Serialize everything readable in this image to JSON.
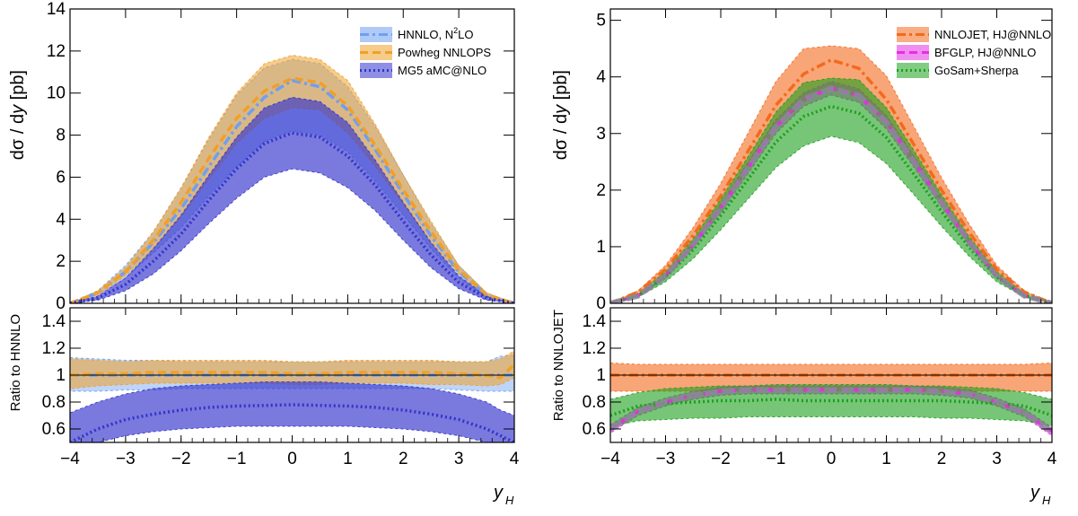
{
  "colors": {
    "hnnlo": "#6f9ff0",
    "powheg": "#f0a028",
    "mg5": "#3333cc",
    "nnlojet": "#f36a1d",
    "bfglp": "#e62ee6",
    "gosam": "#1ca01c",
    "overlay": "#8a8a9a"
  },
  "chart_data": [
    {
      "type": "line",
      "panel": "left-main",
      "ylabel": "dσ / dy [pb]",
      "ylabel_parts": {
        "a": "dσ / d",
        "b": "y",
        "c": " [pb]"
      },
      "xlabel": "y_H",
      "xlim": [
        -4,
        4
      ],
      "ylim": [
        0,
        14
      ],
      "x_ticks": [
        "−4",
        "−3",
        "−2",
        "−1",
        "0",
        "1",
        "2",
        "3",
        "4"
      ],
      "y_ticks": [
        "0",
        "2",
        "4",
        "6",
        "8",
        "10",
        "12",
        "14"
      ],
      "x": [
        -4,
        -3.5,
        -3,
        -2.5,
        -2,
        -1.5,
        -1,
        -0.5,
        0,
        0.5,
        1,
        1.5,
        2,
        2.5,
        3,
        3.5,
        4
      ],
      "legend_position": "top-right",
      "series": [
        {
          "name": "HNNLO, N²LO",
          "name_parts": {
            "a": "HNNLO, N",
            "sup": "2",
            "b": "LO"
          },
          "color_key": "hnnlo",
          "style": "dashdot",
          "central": [
            0.0,
            0.5,
            1.5,
            2.9,
            4.5,
            6.5,
            8.4,
            9.8,
            10.6,
            10.3,
            9.2,
            7.3,
            5.2,
            3.2,
            1.5,
            0.4,
            0.0
          ],
          "low": [
            0.0,
            0.4,
            1.2,
            2.4,
            3.6,
            5.1,
            6.5,
            7.7,
            8.2,
            8.0,
            7.2,
            5.8,
            4.2,
            2.6,
            1.2,
            0.3,
            0.0
          ],
          "high": [
            0.0,
            0.6,
            1.8,
            3.4,
            5.5,
            7.8,
            9.9,
            11.2,
            11.6,
            11.4,
            10.3,
            8.4,
            6.1,
            3.8,
            1.8,
            0.5,
            0.0
          ]
        },
        {
          "name": "Powheg NNLOPS",
          "color_key": "powheg",
          "style": "dashed",
          "central": [
            0.0,
            0.5,
            1.5,
            3.0,
            4.8,
            6.9,
            8.8,
            10.1,
            10.7,
            10.5,
            9.4,
            7.5,
            5.4,
            3.4,
            1.6,
            0.4,
            0.0
          ],
          "low": [
            0.0,
            0.4,
            1.3,
            2.6,
            4.1,
            5.9,
            7.6,
            8.8,
            9.3,
            9.2,
            8.1,
            6.5,
            4.7,
            2.9,
            1.4,
            0.3,
            0.0
          ],
          "high": [
            0.0,
            0.6,
            1.7,
            3.4,
            5.5,
            7.9,
            10.0,
            11.4,
            11.8,
            11.6,
            10.6,
            8.5,
            6.1,
            3.9,
            1.8,
            0.5,
            0.0
          ]
        },
        {
          "name": "MG5 aMC@NLO",
          "color_key": "mg5",
          "style": "dotted",
          "central": [
            0.0,
            0.25,
            0.9,
            2.0,
            3.3,
            4.9,
            6.4,
            7.6,
            8.1,
            7.9,
            7.0,
            5.6,
            3.9,
            2.3,
            1.0,
            0.25,
            0.0
          ],
          "low": [
            0.0,
            0.15,
            0.6,
            1.4,
            2.5,
            3.8,
            5.0,
            6.0,
            6.4,
            6.2,
            5.5,
            4.4,
            3.0,
            1.7,
            0.7,
            0.15,
            0.0
          ],
          "high": [
            0.0,
            0.35,
            1.2,
            2.6,
            4.2,
            6.1,
            7.9,
            9.3,
            9.8,
            9.6,
            8.6,
            6.8,
            4.8,
            2.9,
            1.3,
            0.35,
            0.0
          ]
        }
      ]
    },
    {
      "type": "line",
      "panel": "left-ratio",
      "ylabel": "Ratio to HNNLO",
      "xlabel": "y_H",
      "xlim": [
        -4,
        4
      ],
      "ylim": [
        0.5,
        1.5
      ],
      "y_ticks": [
        "0.6",
        "0.8",
        "1",
        "1.2",
        "1.4"
      ],
      "x_ticks": [
        "−4",
        "−3",
        "−2",
        "−1",
        "0",
        "1",
        "2",
        "3",
        "4"
      ],
      "x": [
        -4,
        -3.5,
        -3,
        -2.5,
        -2,
        -1.5,
        -1,
        -0.5,
        0,
        0.5,
        1,
        1.5,
        2,
        2.5,
        3,
        3.5,
        3.75,
        4
      ],
      "series": [
        {
          "series": "HNNLO, N²LO",
          "color_key": "hnnlo",
          "style": "dashdot",
          "central": [
            1,
            1,
            1,
            1,
            1,
            1,
            1,
            1,
            1,
            1,
            1,
            1,
            1,
            1,
            1,
            1,
            1,
            1
          ],
          "low": [
            0.88,
            0.88,
            0.89,
            0.89,
            0.9,
            0.9,
            0.9,
            0.9,
            0.9,
            0.9,
            0.9,
            0.9,
            0.9,
            0.9,
            0.89,
            0.88,
            0.88,
            0.88
          ],
          "high": [
            1.13,
            1.12,
            1.11,
            1.11,
            1.1,
            1.1,
            1.1,
            1.1,
            1.1,
            1.1,
            1.1,
            1.1,
            1.1,
            1.1,
            1.1,
            1.1,
            1.14,
            1.15
          ]
        },
        {
          "series": "Powheg NNLOPS",
          "color_key": "powheg",
          "style": "dashed",
          "central": [
            1.0,
            1.01,
            1.01,
            1.02,
            1.02,
            1.02,
            1.02,
            1.02,
            1.01,
            1.01,
            1.02,
            1.02,
            1.02,
            1.02,
            1.01,
            1.0,
            0.98,
            1.08
          ],
          "low": [
            0.9,
            0.92,
            0.93,
            0.94,
            0.94,
            0.94,
            0.94,
            0.94,
            0.93,
            0.93,
            0.94,
            0.94,
            0.94,
            0.93,
            0.93,
            0.92,
            0.93,
            0.98
          ],
          "high": [
            1.12,
            1.11,
            1.1,
            1.11,
            1.11,
            1.11,
            1.11,
            1.11,
            1.1,
            1.1,
            1.11,
            1.11,
            1.11,
            1.11,
            1.1,
            1.1,
            1.12,
            1.18
          ]
        },
        {
          "series": "MG5 aMC@NLO",
          "color_key": "mg5",
          "style": "dotted",
          "central": [
            0.5,
            0.6,
            0.67,
            0.71,
            0.74,
            0.76,
            0.77,
            0.775,
            0.78,
            0.775,
            0.77,
            0.76,
            0.74,
            0.71,
            0.67,
            0.6,
            0.55,
            0.5
          ],
          "low": [
            0.45,
            0.5,
            0.55,
            0.58,
            0.6,
            0.61,
            0.62,
            0.62,
            0.62,
            0.62,
            0.62,
            0.61,
            0.6,
            0.58,
            0.55,
            0.5,
            0.47,
            0.45
          ],
          "high": [
            0.72,
            0.8,
            0.86,
            0.9,
            0.92,
            0.93,
            0.94,
            0.95,
            0.95,
            0.95,
            0.94,
            0.93,
            0.92,
            0.9,
            0.86,
            0.8,
            0.74,
            0.7
          ]
        }
      ]
    },
    {
      "type": "line",
      "panel": "right-main",
      "ylabel": "dσ / dy [pb]",
      "ylabel_parts": {
        "a": "dσ / d",
        "b": "y",
        "c": " [pb]"
      },
      "xlabel": "y_H",
      "xlim": [
        -4,
        4
      ],
      "ylim": [
        0,
        5.2
      ],
      "y_ticks": [
        "0",
        "1",
        "2",
        "3",
        "4",
        "5"
      ],
      "x_ticks": [
        "−4",
        "−3",
        "−2",
        "−1",
        "0",
        "1",
        "2",
        "3",
        "4"
      ],
      "x": [
        -4,
        -3.5,
        -3,
        -2.5,
        -2,
        -1.5,
        -1,
        -0.5,
        0,
        0.5,
        1,
        1.5,
        2,
        2.5,
        3,
        3.5,
        4
      ],
      "legend_position": "top-right",
      "series": [
        {
          "name": "NNLOJET, HJ@NNLO",
          "color_key": "nnlojet",
          "style": "dashdot",
          "central": [
            0.0,
            0.2,
            0.6,
            1.2,
            1.9,
            2.7,
            3.5,
            4.05,
            4.3,
            4.15,
            3.6,
            2.8,
            2.0,
            1.25,
            0.6,
            0.2,
            0.0
          ],
          "low": [
            0.0,
            0.18,
            0.53,
            1.05,
            1.67,
            2.38,
            3.08,
            3.56,
            3.78,
            3.65,
            3.17,
            2.46,
            1.76,
            1.1,
            0.53,
            0.18,
            0.0
          ],
          "high": [
            0.0,
            0.22,
            0.67,
            1.34,
            2.12,
            3.02,
            3.92,
            4.5,
            4.55,
            4.5,
            4.02,
            3.12,
            2.22,
            1.4,
            0.67,
            0.22,
            0.0
          ]
        },
        {
          "name": "BFGLP, HJ@NNLO",
          "color_key": "bfglp",
          "style": "dashed",
          "central": [
            0.0,
            0.13,
            0.48,
            1.03,
            1.68,
            2.4,
            3.12,
            3.6,
            3.8,
            3.67,
            3.2,
            2.5,
            1.78,
            1.08,
            0.48,
            0.13,
            0.0
          ],
          "low": [
            0.0,
            0.12,
            0.45,
            0.98,
            1.6,
            2.3,
            3.0,
            3.48,
            3.68,
            3.55,
            3.08,
            2.4,
            1.7,
            1.03,
            0.45,
            0.12,
            0.0
          ],
          "high": [
            0.0,
            0.14,
            0.51,
            1.08,
            1.76,
            2.5,
            3.24,
            3.72,
            3.92,
            3.79,
            3.32,
            2.6,
            1.86,
            1.13,
            0.51,
            0.14,
            0.0
          ]
        },
        {
          "name": "GoSam+Sherpa",
          "color_key": "gosam",
          "style": "dotted",
          "central": [
            0.0,
            0.14,
            0.46,
            0.95,
            1.55,
            2.2,
            2.85,
            3.3,
            3.48,
            3.36,
            2.93,
            2.28,
            1.62,
            0.99,
            0.46,
            0.14,
            0.0
          ],
          "low": [
            0.0,
            0.11,
            0.38,
            0.79,
            1.3,
            1.85,
            2.4,
            2.78,
            2.95,
            2.84,
            2.47,
            1.92,
            1.36,
            0.83,
            0.38,
            0.11,
            0.0
          ],
          "high": [
            0.0,
            0.17,
            0.56,
            1.14,
            1.84,
            2.6,
            3.38,
            3.9,
            3.98,
            3.95,
            3.46,
            2.7,
            1.92,
            1.18,
            0.56,
            0.17,
            0.0
          ]
        }
      ]
    },
    {
      "type": "line",
      "panel": "right-ratio",
      "ylabel": "Ratio to NNLOJET",
      "xlabel": "y_H",
      "xlim": [
        -4,
        4
      ],
      "ylim": [
        0.5,
        1.5
      ],
      "y_ticks": [
        "0.6",
        "0.8",
        "1",
        "1.2",
        "1.4"
      ],
      "x_ticks": [
        "−4",
        "−3",
        "−2",
        "−1",
        "0",
        "1",
        "2",
        "3",
        "4"
      ],
      "x": [
        -4,
        -3.5,
        -3,
        -2.5,
        -2,
        -1.5,
        -1,
        -0.5,
        0,
        0.5,
        1,
        1.5,
        2,
        2.5,
        3,
        3.5,
        4
      ],
      "series": [
        {
          "series": "NNLOJET, HJ@NNLO",
          "color_key": "nnlojet",
          "style": "dashdot",
          "central": [
            1,
            1,
            1,
            1,
            1,
            1,
            1,
            1,
            1,
            1,
            1,
            1,
            1,
            1,
            1,
            1,
            1
          ],
          "low": [
            0.88,
            0.88,
            0.88,
            0.88,
            0.88,
            0.88,
            0.88,
            0.88,
            0.88,
            0.88,
            0.88,
            0.88,
            0.88,
            0.88,
            0.88,
            0.88,
            0.88
          ],
          "high": [
            1.09,
            1.08,
            1.08,
            1.08,
            1.08,
            1.08,
            1.08,
            1.08,
            1.08,
            1.08,
            1.08,
            1.08,
            1.08,
            1.08,
            1.08,
            1.08,
            1.09
          ]
        },
        {
          "series": "BFGLP, HJ@NNLO",
          "color_key": "bfglp",
          "style": "dashed",
          "central": [
            0.6,
            0.73,
            0.8,
            0.85,
            0.88,
            0.89,
            0.89,
            0.89,
            0.89,
            0.89,
            0.89,
            0.89,
            0.88,
            0.86,
            0.8,
            0.72,
            0.58
          ],
          "low": [
            0.57,
            0.7,
            0.77,
            0.82,
            0.85,
            0.86,
            0.86,
            0.86,
            0.86,
            0.86,
            0.86,
            0.86,
            0.85,
            0.83,
            0.77,
            0.69,
            0.55
          ],
          "high": [
            0.63,
            0.76,
            0.83,
            0.88,
            0.91,
            0.92,
            0.92,
            0.92,
            0.92,
            0.92,
            0.92,
            0.92,
            0.91,
            0.89,
            0.83,
            0.75,
            0.61
          ]
        },
        {
          "series": "GoSam+Sherpa",
          "color_key": "gosam",
          "style": "dotted",
          "central": [
            0.7,
            0.77,
            0.79,
            0.8,
            0.81,
            0.81,
            0.82,
            0.81,
            0.81,
            0.81,
            0.81,
            0.81,
            0.81,
            0.8,
            0.79,
            0.77,
            0.7
          ],
          "low": [
            0.62,
            0.66,
            0.67,
            0.68,
            0.68,
            0.69,
            0.69,
            0.69,
            0.69,
            0.69,
            0.69,
            0.69,
            0.68,
            0.68,
            0.67,
            0.66,
            0.62
          ],
          "high": [
            0.82,
            0.87,
            0.9,
            0.91,
            0.92,
            0.92,
            0.93,
            0.93,
            0.93,
            0.93,
            0.93,
            0.92,
            0.92,
            0.91,
            0.9,
            0.87,
            0.82
          ]
        }
      ]
    }
  ]
}
